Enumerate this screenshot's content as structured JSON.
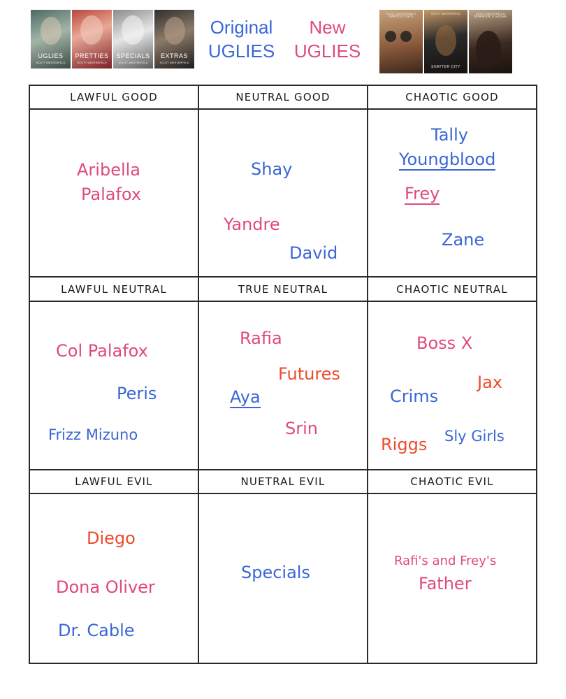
{
  "original_books": [
    {
      "title": "UGLIES",
      "author": "SCOTT WESTERFELD"
    },
    {
      "title": "PRETTIES",
      "author": "SCOTT WESTERFELD"
    },
    {
      "title": "SPECIALS",
      "author": "SCOTT WESTERFELD"
    },
    {
      "title": "EXTRAS",
      "author": "SCOTT WESTERFELD"
    }
  ],
  "new_books": [
    {
      "title": "IMPOSTORS",
      "author": "SCOTT WESTERFELD"
    },
    {
      "title": "SHATTER CITY",
      "author": "SCOTT WESTERFELD"
    },
    {
      "title": "MIRROR'S EDGE",
      "author": "SCOTT WESTERFELD"
    }
  ],
  "legend": {
    "original_line1": "Original",
    "original_line2": "UGLIES",
    "new_line1": "New",
    "new_line2": "UGLIES"
  },
  "colors": {
    "original": "#3a66d6",
    "new": "#e04a7a",
    "accent": "#ef4a2c"
  },
  "headers": {
    "lawful_good": "LAWFUL GOOD",
    "neutral_good": "NEUTRAL GOOD",
    "chaotic_good": "CHAOTIC GOOD",
    "lawful_neutral": "LAWFUL NEUTRAL",
    "true_neutral": "TRUE NEUTRAL",
    "chaotic_neutral": "CHAOTIC NEUTRAL",
    "lawful_evil": "LAWFUL EVIL",
    "neutral_evil": "NUETRAL EVIL",
    "chaotic_evil": "CHAOTIC EVIL"
  },
  "cells": {
    "lawful_good": [
      "Aribella",
      "Palafox"
    ],
    "neutral_good": [
      "Shay",
      "Yandre",
      "David"
    ],
    "chaotic_good": [
      "Tally",
      "Youngblood",
      "Frey",
      "Zane"
    ],
    "lawful_neutral": [
      "Col Palafox",
      "Peris",
      "Frizz Mizuno"
    ],
    "true_neutral": [
      "Rafia",
      "Futures",
      "Aya",
      "Srin"
    ],
    "chaotic_neutral": [
      "Boss X",
      "Jax",
      "Crims",
      "Riggs",
      "Sly Girls"
    ],
    "lawful_evil": [
      "Diego",
      "Dona Oliver",
      "Dr. Cable"
    ],
    "neutral_evil": [
      "Specials"
    ],
    "chaotic_evil": [
      "Rafi's and Frey's",
      "Father"
    ]
  }
}
